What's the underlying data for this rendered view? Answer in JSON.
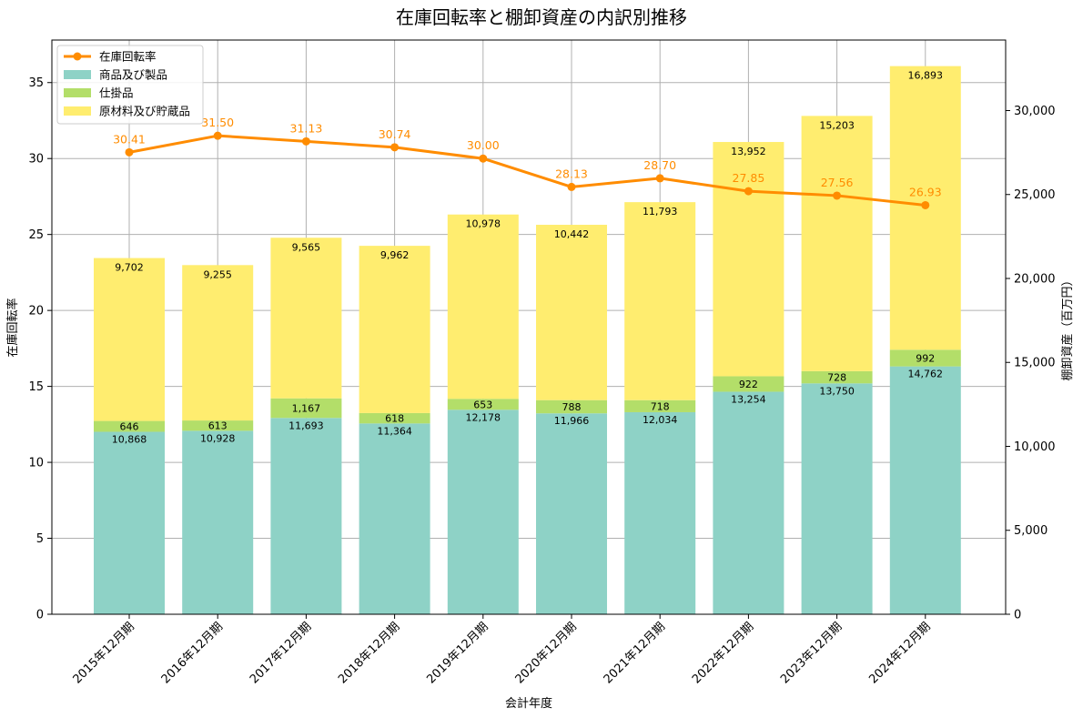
{
  "chart_data": {
    "type": "bar",
    "title": "在庫回転率と棚卸資産の内訳別推移",
    "xlabel": "会計年度",
    "ylabel_left": "在庫回転率",
    "ylabel_right": "棚卸資産（百万円）",
    "categories": [
      "2015年12月期",
      "2016年12月期",
      "2017年12月期",
      "2018年12月期",
      "2019年12月期",
      "2020年12月期",
      "2021年12月期",
      "2022年12月期",
      "2023年12月期",
      "2024年12月期"
    ],
    "stack_series": [
      {
        "name": "商品及び製品",
        "color": "#8ed2c6",
        "values": [
          10868,
          10928,
          11693,
          11364,
          12178,
          11966,
          12034,
          13254,
          13750,
          14762
        ],
        "labels": [
          "10,868",
          "10,928",
          "11,693",
          "11,364",
          "12,178",
          "11,966",
          "12,034",
          "13,254",
          "13,750",
          "14,762"
        ]
      },
      {
        "name": "仕掛品",
        "color": "#b3de69",
        "values": [
          646,
          613,
          1167,
          618,
          653,
          788,
          718,
          922,
          728,
          992
        ],
        "labels": [
          "646",
          "613",
          "1,167",
          "618",
          "653",
          "788",
          "718",
          "922",
          "728",
          "992"
        ]
      },
      {
        "name": "原材料及び貯蔵品",
        "color": "#ffed6f",
        "values": [
          9702,
          9255,
          9565,
          9962,
          10978,
          10442,
          11793,
          13952,
          15203,
          16893
        ],
        "labels": [
          "9,702",
          "9,255",
          "9,565",
          "9,962",
          "10,978",
          "10,442",
          "11,793",
          "13,952",
          "15,203",
          "16,893"
        ]
      }
    ],
    "line_series": {
      "name": "在庫回転率",
      "color": "#ff8c00",
      "values": [
        30.41,
        31.5,
        31.13,
        30.74,
        30.0,
        28.13,
        28.7,
        27.85,
        27.56,
        26.93
      ],
      "labels": [
        "30.41",
        "31.50",
        "31.13",
        "30.74",
        "30.00",
        "28.13",
        "28.70",
        "27.85",
        "27.56",
        "26.93"
      ]
    },
    "left_axis": {
      "range": [
        0,
        37.8
      ],
      "ticks": [
        0,
        5,
        10,
        15,
        20,
        25,
        30,
        35
      ],
      "tick_labels": [
        "0",
        "5",
        "10",
        "15",
        "20",
        "25",
        "30",
        "35"
      ]
    },
    "right_axis": {
      "range": [
        0,
        34200
      ],
      "ticks": [
        0,
        5000,
        10000,
        15000,
        20000,
        25000,
        30000
      ],
      "tick_labels": [
        "0",
        "5,000",
        "10,000",
        "15,000",
        "20,000",
        "25,000",
        "30,000"
      ]
    },
    "grid": true,
    "legend_position": "top-left"
  }
}
